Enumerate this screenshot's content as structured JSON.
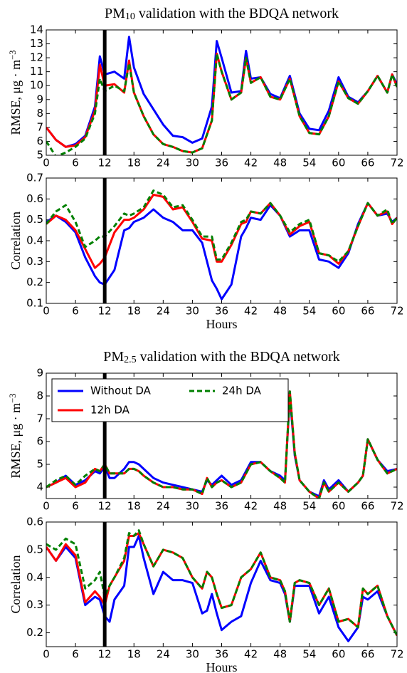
{
  "chart_data": [
    {
      "type": "line",
      "title": [
        "PM",
        "10",
        " validation with the BDQA network"
      ],
      "ylabel": [
        "RMSE,  μg · m",
        "−3"
      ],
      "vline": 12,
      "x": [
        0,
        2,
        4,
        6,
        8,
        10,
        11,
        12,
        14,
        16,
        17,
        18,
        20,
        22,
        24,
        26,
        28,
        30,
        32,
        34,
        35,
        36,
        38,
        40,
        41,
        42,
        44,
        46,
        48,
        50,
        52,
        54,
        56,
        58,
        60,
        62,
        64,
        66,
        68,
        70,
        71,
        72
      ],
      "series": [
        {
          "color": "#0000ff",
          "linestyle": "-",
          "values": [
            7.0,
            6.1,
            5.6,
            5.8,
            6.4,
            8.5,
            12.1,
            10.8,
            11.0,
            10.5,
            13.5,
            11.3,
            9.4,
            8.3,
            7.2,
            6.4,
            6.3,
            5.9,
            6.2,
            8.5,
            13.2,
            12.0,
            9.5,
            9.6,
            12.5,
            10.5,
            10.6,
            9.4,
            9.1,
            10.7,
            8.0,
            6.9,
            6.8,
            8.2,
            10.6,
            9.2,
            8.8,
            9.6,
            10.7,
            9.5,
            10.8,
            10.1
          ]
        },
        {
          "color": "#ff0000",
          "linestyle": "-",
          "values": [
            7.0,
            6.1,
            5.6,
            5.7,
            6.3,
            8.2,
            11.5,
            10.0,
            10.1,
            9.5,
            11.8,
            9.5,
            7.8,
            6.5,
            5.8,
            5.6,
            5.3,
            5.2,
            5.5,
            7.5,
            12.3,
            11.0,
            9.0,
            9.5,
            12.0,
            10.2,
            10.6,
            9.2,
            9.0,
            10.5,
            7.8,
            6.6,
            6.5,
            7.8,
            10.3,
            9.1,
            8.7,
            9.6,
            10.7,
            9.5,
            10.8,
            9.9
          ]
        },
        {
          "color": "#008000",
          "linestyle": "--",
          "values": [
            6.0,
            4.9,
            5.2,
            5.6,
            6.2,
            8.0,
            10.5,
            9.6,
            10.0,
            9.6,
            11.6,
            9.5,
            7.8,
            6.5,
            5.8,
            5.6,
            5.3,
            5.2,
            5.5,
            7.5,
            12.3,
            11.0,
            9.0,
            9.5,
            12.0,
            10.2,
            10.6,
            9.2,
            9.0,
            10.5,
            7.8,
            6.6,
            6.5,
            7.8,
            10.3,
            9.1,
            8.7,
            9.6,
            10.7,
            9.5,
            10.8,
            9.9
          ]
        }
      ],
      "xlim": [
        0,
        72
      ],
      "xticks": [
        0,
        6,
        12,
        18,
        24,
        30,
        36,
        42,
        48,
        54,
        60,
        66,
        72
      ],
      "ylim": [
        5,
        14
      ],
      "yticks": [
        5,
        6,
        7,
        8,
        9,
        10,
        11,
        12,
        13,
        14
      ]
    },
    {
      "type": "line",
      "ylabel": "Correlation",
      "xlabel": "Hours",
      "vline": 12,
      "x": [
        0,
        2,
        4,
        6,
        8,
        10,
        11,
        12,
        14,
        16,
        17,
        18,
        20,
        22,
        24,
        26,
        28,
        30,
        32,
        34,
        35,
        36,
        38,
        40,
        41,
        42,
        44,
        46,
        48,
        50,
        52,
        54,
        56,
        58,
        60,
        62,
        64,
        66,
        68,
        70,
        71,
        72
      ],
      "series": [
        {
          "color": "#0000ff",
          "linestyle": "-",
          "values": [
            0.49,
            0.52,
            0.49,
            0.44,
            0.32,
            0.23,
            0.2,
            0.19,
            0.26,
            0.45,
            0.46,
            0.49,
            0.51,
            0.55,
            0.51,
            0.49,
            0.45,
            0.45,
            0.39,
            0.21,
            0.17,
            0.12,
            0.19,
            0.42,
            0.46,
            0.51,
            0.5,
            0.57,
            0.52,
            0.42,
            0.45,
            0.45,
            0.31,
            0.3,
            0.27,
            0.34,
            0.48,
            0.58,
            0.52,
            0.53,
            0.49,
            0.51
          ]
        },
        {
          "color": "#ff0000",
          "linestyle": "-",
          "values": [
            0.48,
            0.52,
            0.5,
            0.45,
            0.36,
            0.27,
            0.29,
            0.32,
            0.44,
            0.5,
            0.5,
            0.51,
            0.55,
            0.62,
            0.61,
            0.55,
            0.56,
            0.49,
            0.41,
            0.4,
            0.3,
            0.3,
            0.38,
            0.48,
            0.49,
            0.54,
            0.53,
            0.58,
            0.52,
            0.43,
            0.47,
            0.49,
            0.34,
            0.33,
            0.29,
            0.35,
            0.47,
            0.58,
            0.52,
            0.54,
            0.48,
            0.51
          ]
        },
        {
          "color": "#008000",
          "linestyle": "--",
          "values": [
            0.48,
            0.54,
            0.57,
            0.49,
            0.37,
            0.4,
            0.42,
            0.42,
            0.47,
            0.53,
            0.52,
            0.53,
            0.56,
            0.64,
            0.62,
            0.56,
            0.57,
            0.5,
            0.42,
            0.42,
            0.31,
            0.31,
            0.39,
            0.49,
            0.5,
            0.54,
            0.53,
            0.58,
            0.52,
            0.44,
            0.48,
            0.5,
            0.34,
            0.33,
            0.3,
            0.35,
            0.47,
            0.58,
            0.52,
            0.55,
            0.48,
            0.51
          ]
        }
      ],
      "xlim": [
        0,
        72
      ],
      "xticks": [
        0,
        6,
        12,
        18,
        24,
        30,
        36,
        42,
        48,
        54,
        60,
        66,
        72
      ],
      "ylim": [
        0.1,
        0.7
      ],
      "yticks": [
        0.1,
        0.2,
        0.3,
        0.4,
        0.5,
        0.6,
        0.7
      ]
    },
    {
      "type": "line",
      "title": [
        "PM",
        "2.5",
        " validation with the BDQA network"
      ],
      "ylabel": [
        "RMSE,  μg · m",
        "−3"
      ],
      "vline": 12,
      "legend": "upper left",
      "legend_ncol": 2,
      "x": [
        0,
        2,
        4,
        6,
        8,
        10,
        11,
        12,
        13,
        14,
        16,
        17,
        18,
        19,
        20,
        22,
        24,
        26,
        28,
        30,
        32,
        33,
        34,
        35,
        36,
        38,
        40,
        42,
        44,
        46,
        48,
        49,
        50,
        51,
        52,
        54,
        56,
        57,
        58,
        60,
        62,
        64,
        65,
        66,
        68,
        70,
        72
      ],
      "series": [
        {
          "name": "Without DA",
          "color": "#0000ff",
          "linestyle": "-",
          "values": [
            4.0,
            4.2,
            4.5,
            4.1,
            4.3,
            4.7,
            4.6,
            4.9,
            4.4,
            4.4,
            4.8,
            5.1,
            5.1,
            5.0,
            4.8,
            4.4,
            4.2,
            4.1,
            4.0,
            3.9,
            3.8,
            4.3,
            4.1,
            4.3,
            4.5,
            4.1,
            4.3,
            5.1,
            5.1,
            4.7,
            4.5,
            4.3,
            8.0,
            5.4,
            4.3,
            3.8,
            3.6,
            4.3,
            3.9,
            4.3,
            3.8,
            4.2,
            4.5,
            6.1,
            5.2,
            4.7,
            4.8
          ]
        },
        {
          "name": "12h DA",
          "color": "#ff0000",
          "linestyle": "-",
          "values": [
            4.0,
            4.2,
            4.4,
            4.0,
            4.2,
            4.8,
            4.7,
            5.0,
            4.6,
            4.6,
            4.6,
            4.8,
            4.8,
            4.7,
            4.5,
            4.2,
            4.0,
            4.0,
            3.9,
            3.9,
            3.7,
            4.4,
            4.0,
            4.2,
            4.3,
            4.0,
            4.2,
            5.0,
            5.1,
            4.7,
            4.4,
            4.2,
            8.2,
            5.5,
            4.3,
            3.8,
            3.5,
            4.2,
            3.8,
            4.2,
            3.8,
            4.2,
            4.5,
            6.1,
            5.2,
            4.6,
            4.8
          ]
        },
        {
          "name": "24h DA",
          "color": "#008000",
          "linestyle": "--",
          "values": [
            4.0,
            4.3,
            4.5,
            4.1,
            4.5,
            4.8,
            4.7,
            5.0,
            4.6,
            4.6,
            4.6,
            4.8,
            4.8,
            4.7,
            4.5,
            4.2,
            4.0,
            4.0,
            3.9,
            3.9,
            3.7,
            4.4,
            4.0,
            4.2,
            4.3,
            4.0,
            4.2,
            5.0,
            5.1,
            4.7,
            4.4,
            4.2,
            8.2,
            5.5,
            4.3,
            3.8,
            3.5,
            4.2,
            3.8,
            4.2,
            3.8,
            4.2,
            4.5,
            6.1,
            5.2,
            4.6,
            4.8
          ]
        }
      ],
      "xlim": [
        0,
        72
      ],
      "xticks": [
        0,
        6,
        12,
        18,
        24,
        30,
        36,
        42,
        48,
        54,
        60,
        66,
        72
      ],
      "ylim": [
        3.5,
        9
      ],
      "yticks": [
        4,
        5,
        6,
        7,
        8,
        9
      ]
    },
    {
      "type": "line",
      "ylabel": "Correlation",
      "xlabel": "Hours",
      "vline": 12,
      "x": [
        0,
        2,
        4,
        6,
        8,
        10,
        11,
        12,
        13,
        14,
        16,
        17,
        18,
        19,
        20,
        22,
        24,
        26,
        28,
        30,
        32,
        33,
        34,
        35,
        36,
        38,
        40,
        42,
        44,
        46,
        48,
        49,
        50,
        51,
        52,
        54,
        56,
        57,
        58,
        60,
        62,
        64,
        65,
        66,
        68,
        70,
        72
      ],
      "series": [
        {
          "color": "#0000ff",
          "linestyle": "-",
          "values": [
            0.51,
            0.46,
            0.51,
            0.47,
            0.3,
            0.33,
            0.32,
            0.26,
            0.24,
            0.32,
            0.37,
            0.51,
            0.51,
            0.55,
            0.47,
            0.34,
            0.42,
            0.39,
            0.39,
            0.38,
            0.27,
            0.28,
            0.34,
            0.27,
            0.21,
            0.24,
            0.26,
            0.38,
            0.46,
            0.39,
            0.38,
            0.34,
            0.24,
            0.37,
            0.37,
            0.37,
            0.27,
            0.3,
            0.33,
            0.22,
            0.17,
            0.22,
            0.33,
            0.32,
            0.35,
            0.26,
            0.19
          ]
        },
        {
          "color": "#ff0000",
          "linestyle": "-",
          "values": [
            0.51,
            0.46,
            0.52,
            0.48,
            0.31,
            0.35,
            0.33,
            0.3,
            0.37,
            0.4,
            0.46,
            0.55,
            0.55,
            0.56,
            0.52,
            0.44,
            0.5,
            0.49,
            0.47,
            0.4,
            0.36,
            0.42,
            0.4,
            0.34,
            0.29,
            0.3,
            0.4,
            0.43,
            0.49,
            0.4,
            0.39,
            0.35,
            0.24,
            0.38,
            0.39,
            0.38,
            0.3,
            0.33,
            0.36,
            0.24,
            0.25,
            0.22,
            0.36,
            0.34,
            0.37,
            0.26,
            0.19
          ]
        },
        {
          "color": "#008000",
          "linestyle": "--",
          "values": [
            0.52,
            0.5,
            0.54,
            0.52,
            0.36,
            0.39,
            0.42,
            0.33,
            0.37,
            0.4,
            0.47,
            0.56,
            0.55,
            0.57,
            0.52,
            0.44,
            0.5,
            0.49,
            0.47,
            0.4,
            0.36,
            0.42,
            0.4,
            0.34,
            0.29,
            0.3,
            0.4,
            0.43,
            0.49,
            0.4,
            0.39,
            0.35,
            0.24,
            0.38,
            0.39,
            0.38,
            0.3,
            0.33,
            0.36,
            0.24,
            0.25,
            0.22,
            0.36,
            0.34,
            0.37,
            0.26,
            0.19
          ]
        }
      ],
      "xlim": [
        0,
        72
      ],
      "xticks": [
        0,
        6,
        12,
        18,
        24,
        30,
        36,
        42,
        48,
        54,
        60,
        66,
        72
      ],
      "ylim": [
        0.15,
        0.6
      ],
      "yticks": [
        0.2,
        0.3,
        0.4,
        0.5,
        0.6
      ]
    }
  ]
}
